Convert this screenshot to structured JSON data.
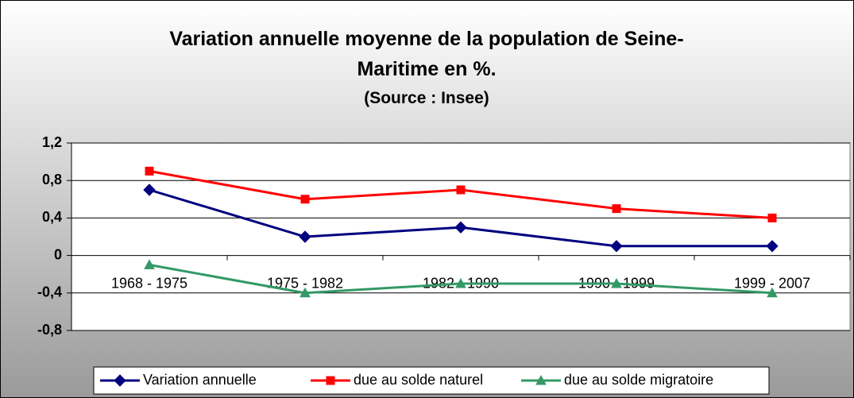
{
  "chart_data": {
    "type": "line",
    "title": "Variation annuelle moyenne de la population de Seine-Maritime en %.",
    "subtitle": "(Source : Insee)",
    "categories": [
      "1968 - 1975",
      "1975 - 1982",
      "1982 - 1990",
      "1990 - 1999",
      "1999 - 2007"
    ],
    "series": [
      {
        "name": "Variation annuelle",
        "color": "#000080",
        "marker": "diamond",
        "values": [
          0.7,
          0.2,
          0.3,
          0.1,
          0.1
        ]
      },
      {
        "name": "due au solde naturel",
        "color": "#ff0000",
        "marker": "square",
        "values": [
          0.9,
          0.6,
          0.7,
          0.5,
          0.4
        ]
      },
      {
        "name": "due au solde migratoire",
        "color": "#339966",
        "marker": "triangle",
        "values": [
          -0.1,
          -0.4,
          -0.3,
          -0.3,
          -0.4
        ]
      }
    ],
    "ylim": [
      -0.8,
      1.2
    ],
    "yticks": [
      {
        "value": 1.2,
        "label": "1,2"
      },
      {
        "value": 0.8,
        "label": "0,8"
      },
      {
        "value": 0.4,
        "label": "0,4"
      },
      0,
      {
        "value": -0.4,
        "label": "-0,4"
      },
      {
        "value": -0.8,
        "label": "-0,8"
      }
    ],
    "grid": true,
    "legend": "bottom"
  }
}
